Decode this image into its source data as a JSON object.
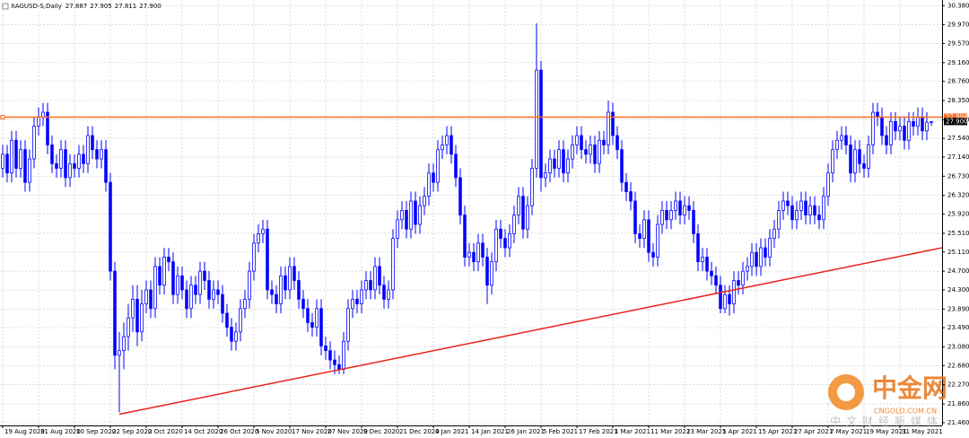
{
  "chart_data": {
    "type": "candlestick",
    "header": {
      "symbol": "XAGUSD-S,Daily",
      "values": [
        "27.887",
        "27.905",
        "27.811",
        "27.900"
      ]
    },
    "color": "#0000ff",
    "open": [
      26.9,
      27.2,
      26.8,
      27.5,
      26.9,
      27.3,
      26.6,
      27.1,
      27.8,
      28.0,
      28.1,
      27.4,
      27.0,
      26.9,
      27.3,
      26.7,
      27.0,
      26.9,
      27.2,
      27.0,
      27.6,
      27.3,
      27.1,
      27.3,
      26.6,
      24.7,
      22.9,
      23.0,
      23.3,
      23.7,
      24.1,
      23.4,
      24.0,
      24.3,
      23.9,
      24.8,
      24.4,
      25.0,
      24.9,
      24.2,
      24.6,
      24.3,
      23.9,
      24.4,
      24.2,
      24.7,
      24.5,
      24.1,
      24.3,
      24.2,
      23.8,
      23.5,
      23.2,
      23.4,
      23.9,
      24.1,
      24.7,
      25.3,
      25.5,
      25.6,
      24.3,
      24.2,
      24.0,
      24.6,
      24.3,
      24.8,
      24.5,
      24.1,
      23.9,
      23.6,
      23.5,
      23.9,
      23.1,
      23.0,
      22.8,
      22.7,
      22.6,
      23.2,
      23.9,
      24.1,
      24.0,
      24.3,
      24.5,
      24.3,
      24.8,
      24.4,
      24.1,
      24.3,
      25.4,
      25.8,
      26.0,
      25.6,
      26.2,
      25.7,
      26.1,
      26.3,
      26.8,
      26.6,
      27.3,
      27.4,
      27.6,
      27.2,
      26.7,
      25.9,
      25.0,
      25.1,
      24.9,
      25.3,
      25.0,
      24.4,
      24.9,
      25.6,
      25.4,
      25.2,
      25.5,
      25.9,
      26.3,
      25.6,
      26.1,
      26.9,
      29.0,
      26.7,
      26.8,
      27.1,
      26.9,
      27.3,
      26.8,
      27.1,
      27.4,
      27.6,
      27.3,
      27.2,
      27.4,
      27.0,
      27.5,
      27.4,
      28.1,
      27.6,
      27.3,
      26.6,
      26.4,
      26.2,
      25.5,
      25.4,
      25.8,
      25.1,
      25.0,
      25.7,
      26.0,
      25.8,
      26.0,
      26.2,
      25.9,
      26.1,
      26.0,
      25.5,
      24.9,
      25.0,
      24.7,
      24.6,
      24.4,
      23.9,
      24.2,
      24.0,
      24.5,
      24.4,
      24.7,
      24.8,
      25.1,
      24.8,
      25.2,
      25.0,
      25.4,
      25.6,
      26.0,
      26.2,
      26.1,
      25.8,
      26.0,
      26.2,
      25.9,
      26.1,
      25.9,
      25.8,
      26.3,
      26.8,
      27.3,
      27.5,
      27.6,
      27.4,
      26.8,
      27.3,
      27.0,
      26.9,
      27.4,
      28.1,
      28.0,
      27.6,
      27.4,
      27.9,
      27.7,
      27.8,
      27.5,
      27.9,
      27.8,
      28.0,
      27.7,
      27.887
    ],
    "high": [
      27.4,
      27.4,
      27.7,
      27.7,
      27.5,
      27.5,
      27.3,
      28.0,
      28.2,
      28.3,
      28.3,
      27.6,
      27.2,
      27.5,
      27.5,
      27.2,
      27.2,
      27.4,
      27.4,
      27.8,
      27.8,
      27.5,
      27.5,
      27.5,
      26.8,
      24.9,
      23.4,
      23.6,
      24.0,
      24.4,
      24.4,
      24.3,
      24.5,
      24.5,
      25.0,
      25.0,
      25.2,
      25.2,
      25.1,
      24.8,
      24.8,
      24.5,
      24.6,
      24.6,
      24.9,
      24.9,
      24.7,
      24.5,
      24.5,
      24.4,
      24.0,
      23.7,
      23.6,
      24.1,
      24.3,
      24.9,
      25.5,
      25.7,
      25.8,
      25.8,
      24.5,
      24.4,
      24.8,
      24.8,
      25.0,
      25.0,
      24.7,
      24.3,
      24.1,
      23.8,
      24.1,
      24.1,
      23.3,
      23.2,
      23.0,
      22.9,
      23.4,
      24.1,
      24.3,
      24.3,
      24.5,
      24.7,
      24.7,
      25.0,
      25.0,
      24.6,
      24.5,
      25.6,
      26.0,
      26.2,
      26.2,
      26.4,
      26.4,
      26.3,
      26.5,
      27.0,
      27.0,
      27.5,
      27.6,
      27.8,
      27.8,
      27.4,
      26.9,
      26.1,
      25.3,
      25.3,
      25.5,
      25.5,
      25.2,
      25.1,
      25.8,
      25.8,
      25.6,
      25.7,
      26.1,
      26.5,
      26.5,
      26.3,
      27.1,
      30.0,
      29.2,
      27.0,
      27.3,
      27.3,
      27.5,
      27.5,
      27.3,
      27.6,
      27.8,
      27.8,
      27.5,
      27.6,
      27.6,
      27.7,
      27.7,
      28.35,
      28.3,
      27.8,
      27.5,
      26.8,
      26.6,
      26.4,
      25.7,
      26.0,
      26.0,
      25.3,
      25.9,
      26.2,
      26.2,
      26.2,
      26.4,
      26.4,
      26.3,
      26.3,
      26.2,
      25.7,
      25.2,
      25.2,
      24.9,
      24.8,
      24.6,
      24.4,
      24.4,
      24.7,
      24.7,
      24.9,
      25.0,
      25.3,
      25.3,
      25.4,
      25.4,
      25.6,
      25.8,
      26.2,
      26.4,
      26.4,
      26.3,
      26.2,
      26.4,
      26.4,
      26.3,
      26.3,
      26.1,
      26.5,
      27.0,
      27.5,
      27.7,
      27.8,
      27.8,
      27.6,
      27.5,
      27.5,
      27.2,
      27.6,
      28.3,
      28.3,
      28.2,
      27.8,
      28.1,
      28.1,
      28.0,
      28.0,
      28.1,
      28.1,
      28.2,
      28.2,
      28.1,
      27.905
    ],
    "low": [
      26.7,
      26.6,
      26.6,
      26.7,
      26.7,
      26.4,
      26.4,
      26.9,
      27.6,
      27.8,
      27.2,
      26.8,
      26.7,
      26.7,
      26.5,
      26.5,
      26.7,
      26.7,
      26.8,
      26.8,
      27.1,
      26.9,
      26.9,
      26.4,
      24.5,
      22.6,
      21.68,
      22.6,
      23.0,
      23.4,
      23.1,
      23.2,
      23.8,
      23.7,
      23.7,
      24.2,
      24.2,
      24.7,
      24.0,
      24.0,
      24.1,
      23.7,
      23.7,
      24.0,
      24.0,
      24.3,
      23.9,
      23.9,
      24.0,
      23.6,
      23.3,
      23.0,
      23.0,
      23.2,
      23.7,
      23.9,
      24.5,
      25.1,
      25.3,
      24.1,
      24.0,
      23.8,
      23.8,
      24.1,
      24.1,
      24.3,
      23.9,
      23.7,
      23.4,
      23.3,
      23.3,
      22.9,
      22.8,
      22.6,
      22.5,
      22.5,
      22.5,
      23.0,
      23.7,
      23.8,
      23.8,
      24.1,
      24.1,
      24.1,
      24.2,
      23.9,
      23.9,
      24.1,
      25.2,
      25.6,
      25.4,
      25.4,
      25.5,
      25.5,
      25.9,
      26.1,
      26.4,
      26.4,
      27.1,
      27.2,
      27.0,
      26.5,
      25.7,
      24.8,
      24.8,
      24.7,
      24.7,
      24.8,
      24.0,
      24.2,
      24.7,
      25.2,
      25.0,
      25.0,
      25.3,
      25.7,
      25.4,
      25.4,
      25.9,
      26.7,
      26.4,
      26.5,
      26.6,
      26.7,
      26.7,
      26.6,
      26.6,
      26.9,
      27.2,
      27.1,
      27.0,
      27.0,
      26.8,
      26.8,
      27.2,
      27.2,
      27.4,
      27.1,
      26.4,
      26.2,
      26.0,
      25.3,
      25.2,
      25.2,
      24.9,
      24.8,
      24.8,
      25.5,
      25.6,
      25.6,
      25.8,
      25.7,
      25.7,
      25.8,
      25.3,
      24.7,
      24.7,
      24.5,
      24.4,
      24.2,
      23.8,
      23.8,
      23.75,
      23.8,
      24.2,
      24.2,
      24.5,
      24.6,
      24.6,
      24.6,
      24.8,
      24.8,
      25.2,
      25.4,
      25.8,
      25.9,
      25.6,
      25.6,
      25.8,
      25.7,
      25.7,
      25.7,
      25.6,
      25.6,
      26.1,
      26.6,
      27.1,
      27.3,
      27.2,
      26.6,
      26.6,
      26.8,
      26.7,
      26.7,
      27.2,
      27.8,
      27.4,
      27.2,
      27.2,
      27.5,
      27.5,
      27.3,
      27.3,
      27.6,
      27.6,
      27.5,
      27.5,
      27.811
    ],
    "close": [
      27.2,
      26.8,
      27.5,
      26.9,
      27.3,
      26.6,
      27.1,
      27.8,
      28.0,
      28.1,
      27.4,
      27.0,
      26.9,
      27.3,
      26.7,
      27.0,
      26.9,
      27.2,
      27.0,
      27.6,
      27.3,
      27.1,
      27.3,
      26.6,
      24.7,
      22.9,
      23.0,
      23.3,
      23.7,
      24.1,
      23.4,
      24.0,
      24.3,
      23.9,
      24.8,
      24.4,
      25.0,
      24.9,
      24.2,
      24.6,
      24.3,
      23.9,
      24.4,
      24.2,
      24.7,
      24.5,
      24.1,
      24.3,
      24.2,
      23.8,
      23.5,
      23.2,
      23.4,
      23.9,
      24.1,
      24.7,
      25.3,
      25.5,
      25.6,
      24.3,
      24.2,
      24.0,
      24.6,
      24.3,
      24.8,
      24.5,
      24.1,
      23.9,
      23.6,
      23.5,
      23.9,
      23.1,
      23.0,
      22.8,
      22.7,
      22.6,
      23.2,
      23.9,
      24.1,
      24.0,
      24.3,
      24.5,
      24.3,
      24.8,
      24.4,
      24.1,
      24.3,
      25.4,
      25.8,
      26.0,
      25.6,
      26.2,
      25.7,
      26.1,
      26.3,
      26.8,
      26.6,
      27.3,
      27.4,
      27.6,
      27.2,
      26.7,
      25.9,
      25.0,
      25.1,
      24.9,
      25.3,
      25.0,
      24.4,
      24.9,
      25.6,
      25.4,
      25.2,
      25.5,
      25.9,
      26.3,
      25.6,
      26.1,
      26.9,
      29.0,
      26.7,
      26.8,
      27.1,
      26.9,
      27.3,
      26.8,
      27.1,
      27.4,
      27.6,
      27.3,
      27.2,
      27.4,
      27.0,
      27.5,
      27.4,
      28.1,
      27.6,
      27.3,
      26.6,
      26.4,
      26.2,
      25.5,
      25.4,
      25.8,
      25.1,
      25.0,
      25.7,
      26.0,
      25.8,
      26.0,
      26.2,
      25.9,
      26.1,
      26.0,
      25.5,
      24.9,
      25.0,
      24.7,
      24.6,
      24.4,
      23.9,
      24.2,
      24.0,
      24.5,
      24.4,
      24.7,
      24.8,
      25.1,
      24.8,
      25.2,
      25.0,
      25.4,
      25.6,
      26.0,
      26.2,
      26.1,
      25.8,
      26.0,
      26.2,
      25.9,
      26.1,
      25.9,
      25.8,
      26.3,
      26.8,
      27.3,
      27.5,
      27.6,
      27.4,
      26.8,
      27.3,
      27.0,
      26.9,
      27.4,
      28.1,
      28.0,
      27.6,
      27.4,
      27.9,
      27.7,
      27.8,
      27.5,
      27.9,
      27.8,
      28.0,
      27.7,
      27.887,
      27.9
    ],
    "xlim": [
      -0.6,
      209.4
    ],
    "xticks": [
      {
        "value": 0,
        "label": "19 Aug 2020"
      },
      {
        "value": 8,
        "label": "31 Aug 2020"
      },
      {
        "value": 16,
        "label": "10 Sep 2020"
      },
      {
        "value": 24,
        "label": "22 Sep 2020"
      },
      {
        "value": 32,
        "label": "2 Oct 2020"
      },
      {
        "value": 40,
        "label": "14 Oct 2020"
      },
      {
        "value": 48,
        "label": "26 Oct 2020"
      },
      {
        "value": 56,
        "label": "5 Nov 2020"
      },
      {
        "value": 64,
        "label": "17 Nov 2020"
      },
      {
        "value": 72,
        "label": "27 Nov 2020"
      },
      {
        "value": 80,
        "label": "9 Dec 2020"
      },
      {
        "value": 88,
        "label": "21 Dec 2020"
      },
      {
        "value": 96,
        "label": "4 Jan 2021"
      },
      {
        "value": 104,
        "label": "14 Jan 2021"
      },
      {
        "value": 112,
        "label": "26 Jan 2021"
      },
      {
        "value": 120,
        "label": "5 Feb 2021"
      },
      {
        "value": 128,
        "label": "17 Feb 2021"
      },
      {
        "value": 136,
        "label": "1 Mar 2021"
      },
      {
        "value": 144,
        "label": "11 Mar 2021"
      },
      {
        "value": 152,
        "label": "23 Mar 2021"
      },
      {
        "value": 160,
        "label": "5 Apr 2021"
      },
      {
        "value": 168,
        "label": "15 Apr 2021"
      },
      {
        "value": 176,
        "label": "27 Apr 2021"
      },
      {
        "value": 184,
        "label": "7 May 2021"
      },
      {
        "value": 192,
        "label": "19 May 2021"
      },
      {
        "value": 200,
        "label": "31 May 2021"
      }
    ],
    "ylim": [
      21.4,
      30.5
    ],
    "yticks": [
      {
        "value": 30.38,
        "label": "30.380"
      },
      {
        "value": 29.97,
        "label": "29.970"
      },
      {
        "value": 29.57,
        "label": "29.570"
      },
      {
        "value": 29.16,
        "label": "29.160"
      },
      {
        "value": 28.76,
        "label": "28.760"
      },
      {
        "value": 28.35,
        "label": "28.350"
      },
      {
        "value": 27.94,
        "label": "27.940"
      },
      {
        "value": 27.54,
        "label": "27.540"
      },
      {
        "value": 27.14,
        "label": "27.140"
      },
      {
        "value": 26.73,
        "label": "26.730"
      },
      {
        "value": 26.32,
        "label": "26.320"
      },
      {
        "value": 25.92,
        "label": "25.920"
      },
      {
        "value": 25.51,
        "label": "25.510"
      },
      {
        "value": 25.11,
        "label": "25.110"
      },
      {
        "value": 24.7,
        "label": "24.700"
      },
      {
        "value": 24.3,
        "label": "24.300"
      },
      {
        "value": 23.89,
        "label": "23.890"
      },
      {
        "value": 23.49,
        "label": "23.490"
      },
      {
        "value": 23.08,
        "label": "23.080"
      },
      {
        "value": 22.68,
        "label": "22.680"
      },
      {
        "value": 22.27,
        "label": "22.270"
      },
      {
        "value": 21.86,
        "label": "21.860"
      },
      {
        "value": 21.46,
        "label": "21.460"
      }
    ],
    "grid": true,
    "price_line": {
      "value": 27.994,
      "label": "27.994",
      "color": "#ff6a1f"
    },
    "current_price": {
      "value": 27.9,
      "label": "27.900"
    },
    "trendline": {
      "color": "#e8211b",
      "x": [
        26,
        209.4
      ],
      "y": [
        21.64,
        25.2
      ]
    },
    "watermark": {
      "brand": "中金网",
      "site": "CNGOLD.COM.CN",
      "slogan": "中文财经新媒体"
    }
  }
}
